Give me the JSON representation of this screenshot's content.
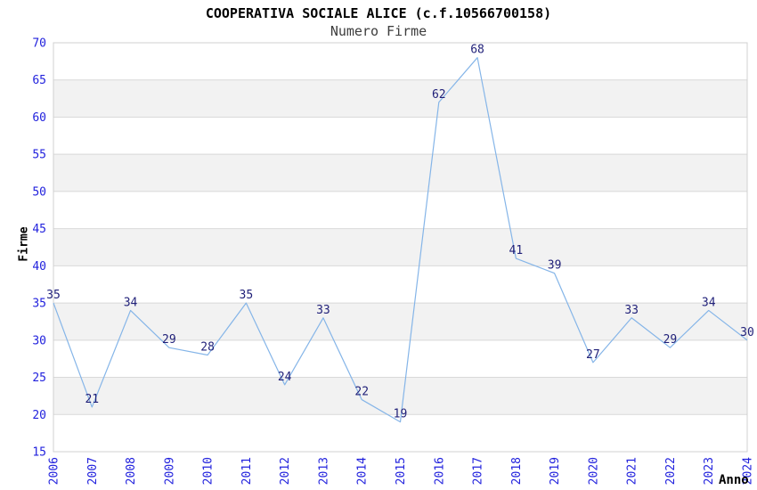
{
  "title": "COOPERATIVA SOCIALE ALICE (c.f.10566700158)",
  "subtitle": "Numero Firme",
  "chart_data": {
    "type": "line",
    "title": "COOPERATIVA SOCIALE ALICE (c.f.10566700158)",
    "subtitle": "Numero Firme",
    "xlabel": "Anno",
    "ylabel": "Firme",
    "x": [
      "2006",
      "2007",
      "2008",
      "2009",
      "2010",
      "2011",
      "2012",
      "2013",
      "2014",
      "2015",
      "2016",
      "2017",
      "2018",
      "2019",
      "2020",
      "2021",
      "2022",
      "2023",
      "2024"
    ],
    "values": [
      35,
      21,
      34,
      29,
      28,
      35,
      24,
      33,
      22,
      19,
      62,
      68,
      41,
      39,
      27,
      33,
      29,
      34,
      30
    ],
    "ylim": [
      15,
      70
    ],
    "ytick_step": 5,
    "yticks": [
      15,
      20,
      25,
      30,
      35,
      40,
      45,
      50,
      55,
      60,
      65,
      70
    ],
    "grid": "horizontal",
    "banding": "alternating-horizontal",
    "legend": "none",
    "point_markers": false,
    "data_labels_visible": true,
    "colors": {
      "line": "#85b5e8",
      "tick_label": "#2222dd",
      "data_label": "#1f1f78",
      "band": "#f2f2f2",
      "grid": "#d9d9d9",
      "plot_border": "#d0d0d0",
      "title": "#000000",
      "subtitle": "#3d3d3d",
      "axis_title": "#000000",
      "background": "#ffffff"
    }
  }
}
